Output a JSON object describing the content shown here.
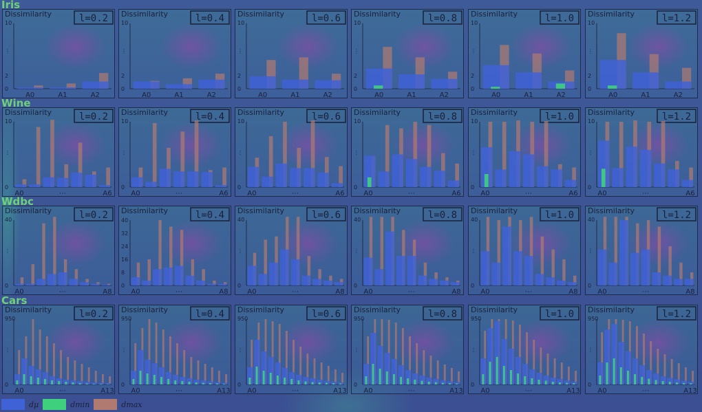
{
  "colors": {
    "mu": "#3f62d6",
    "min": "#3fd07e",
    "max": "#b07a70"
  },
  "legend": [
    {
      "key": "mu",
      "label": "dμ"
    },
    {
      "key": "min",
      "label": "dmin"
    },
    {
      "key": "max",
      "label": "dmax"
    }
  ],
  "chart_data": {
    "type": "bar",
    "panel_title": "Dissimilarity",
    "l_values": [
      "l=0.2",
      "l=0.4",
      "l=0.6",
      "l=0.8",
      "l=1.0",
      "l=1.2"
    ],
    "datasets": [
      {
        "name": "Iris",
        "yticks": [
          "10",
          "⋮",
          "2",
          "0"
        ],
        "ymax": 10,
        "xticks": [
          "A0",
          "A1",
          "A2"
        ],
        "panels": [
          {
            "mu": [
              0.2,
              0.2,
              1.1
            ],
            "min": [
              0,
              0,
              0
            ],
            "max": [
              0.5,
              0.8,
              2.4
            ]
          },
          {
            "mu": [
              1.1,
              0.7,
              1.4
            ],
            "min": [
              0,
              0,
              0
            ],
            "max": [
              1.2,
              1.6,
              2.3
            ]
          },
          {
            "mu": [
              1.9,
              1.4,
              1.3
            ],
            "min": [
              0,
              0,
              0
            ],
            "max": [
              4.4,
              4.8,
              2.3
            ]
          },
          {
            "mu": [
              3.1,
              2.2,
              1.5
            ],
            "min": [
              0.5,
              0,
              0
            ],
            "max": [
              6.4,
              4.8,
              2.6
            ]
          },
          {
            "mu": [
              3.6,
              2.5,
              1.1
            ],
            "min": [
              0.3,
              0,
              0.8
            ],
            "max": [
              6.7,
              5.4,
              2.8
            ]
          },
          {
            "mu": [
              4.4,
              2.5,
              1.1
            ],
            "min": [
              0.5,
              0,
              0
            ],
            "max": [
              8.5,
              5.3,
              3.2
            ]
          }
        ]
      },
      {
        "name": "Wine",
        "yticks": [
          "10",
          "⋮",
          "0"
        ],
        "ymax": 10,
        "xticks": [
          "A0",
          "⋯",
          "A6"
        ],
        "panels": [
          {
            "mu": [
              0.4,
              0.4,
              1.5,
              1.4,
              2.2,
              1.9,
              0.3
            ],
            "min": [
              0,
              0,
              0,
              0,
              0,
              0,
              0
            ],
            "max": [
              1.2,
              9.2,
              10.3,
              3.5,
              6.8,
              2.4,
              3.0
            ]
          },
          {
            "mu": [
              1.5,
              0.8,
              2.8,
              2.4,
              2.4,
              2.3,
              0.3
            ],
            "min": [
              0,
              0,
              0,
              0,
              0,
              0,
              0
            ],
            "max": [
              3.0,
              9.8,
              6.0,
              8.5,
              10.2,
              2.6,
              3.0
            ]
          },
          {
            "mu": [
              3.1,
              1.6,
              3.6,
              2.9,
              2.9,
              2.2,
              0.6
            ],
            "min": [
              0,
              0,
              0,
              0,
              0,
              0,
              0
            ],
            "max": [
              4.5,
              7.8,
              10.0,
              6.0,
              10.2,
              4.6,
              3.2
            ]
          },
          {
            "mu": [
              4.8,
              2.4,
              5.0,
              4.3,
              3.1,
              2.5,
              1.0
            ],
            "min": [
              1.5,
              0,
              0,
              0,
              0,
              0,
              0
            ],
            "max": [
              4.7,
              9.5,
              9.0,
              10.0,
              9.5,
              5.2,
              3.6
            ]
          },
          {
            "mu": [
              6.1,
              2.7,
              5.5,
              5.0,
              3.2,
              2.7,
              1.1
            ],
            "min": [
              2.0,
              0,
              0,
              0,
              0,
              0,
              0
            ],
            "max": [
              10.0,
              10.0,
              10.2,
              10.0,
              10.1,
              3.5,
              3.0
            ]
          },
          {
            "mu": [
              7.1,
              2.9,
              6.2,
              5.7,
              3.6,
              2.7,
              1.1
            ],
            "min": [
              2.8,
              0,
              0,
              0,
              0,
              0,
              0
            ],
            "max": [
              10.0,
              10.0,
              10.2,
              10.0,
              10.1,
              4.0,
              3.0
            ]
          }
        ]
      },
      {
        "name": "Wdbc",
        "yticks": [
          "40",
          "⋮",
          "0"
        ],
        "yticks_alt": [
          "40",
          "32",
          "24",
          "16",
          "8",
          "0"
        ],
        "ymax": 40,
        "xticks": [
          "A0",
          "⋯",
          "A8"
        ],
        "panels": [
          {
            "mu": [
              1,
              1,
              4,
              7,
              8,
              4,
              2,
              1,
              0.5
            ],
            "min": [
              0,
              0,
              0,
              0,
              0,
              0,
              0,
              0,
              0
            ],
            "max": [
              5,
              13,
              38,
              42,
              16,
              10,
              4,
              2,
              1
            ]
          },
          {
            "mu": [
              5,
              3,
              10,
              11,
              12,
              6,
              3,
              1,
              1
            ],
            "min": [
              0,
              0,
              0,
              0,
              0,
              0,
              0,
              0,
              0
            ],
            "max": [
              14,
              16,
              40,
              36,
              34,
              16,
              10,
              3,
              2
            ]
          },
          {
            "mu": [
              12,
              7,
              14,
              22,
              16,
              6,
              4,
              3,
              2
            ],
            "min": [
              0,
              0,
              0,
              0,
              0,
              0,
              0,
              0,
              0
            ],
            "max": [
              20,
              28,
              30,
              42,
              42,
              18,
              10,
              6,
              4
            ]
          },
          {
            "mu": [
              17,
              10,
              33,
              18,
              18,
              6,
              4,
              3,
              2
            ],
            "min": [
              0,
              0,
              0,
              0,
              0,
              0,
              0,
              0,
              0
            ],
            "max": [
              42,
              42,
              42,
              34,
              28,
              14,
              8,
              5,
              3
            ]
          },
          {
            "mu": [
              21,
              14,
              36,
              21,
              18,
              7,
              5,
              3,
              2
            ],
            "min": [
              0,
              0,
              0,
              0,
              0,
              0,
              0,
              0,
              0
            ],
            "max": [
              42,
              40,
              42,
              40,
              42,
              30,
              22,
              16,
              6
            ]
          },
          {
            "mu": [
              22,
              14,
              40,
              20,
              22,
              8,
              6,
              4,
              4
            ],
            "min": [
              0,
              0,
              0,
              0,
              0,
              0,
              0,
              0,
              0
            ],
            "max": [
              42,
              42,
              42,
              38,
              40,
              36,
              24,
              14,
              8
            ]
          }
        ]
      },
      {
        "name": "Cars",
        "yticks": [
          "950",
          "⋮",
          "0"
        ],
        "ymax": 950,
        "xticks": [
          "A0",
          "⋯",
          "A13"
        ],
        "panels": [
          {
            "mu": [
              150,
              380,
              270,
              220,
              180,
              120,
              90,
              70,
              60,
              50,
              40,
              30,
              25,
              20
            ],
            "min": [
              60,
              150,
              120,
              100,
              80,
              60,
              50,
              40,
              30,
              20,
              15,
              10,
              10,
              5
            ],
            "max": [
              500,
              700,
              950,
              800,
              700,
              600,
              500,
              400,
              350,
              300,
              250,
              200,
              150,
              120
            ]
          },
          {
            "mu": [
              200,
              500,
              360,
              310,
              250,
              180,
              140,
              110,
              90,
              70,
              60,
              45,
              35,
              25
            ],
            "min": [
              80,
              200,
              160,
              140,
              110,
              80,
              60,
              50,
              40,
              30,
              25,
              20,
              15,
              10
            ],
            "max": [
              600,
              820,
              950,
              900,
              800,
              700,
              600,
              500,
              400,
              350,
              300,
              250,
              200,
              150
            ]
          },
          {
            "mu": [
              250,
              650,
              480,
              400,
              320,
              240,
              180,
              140,
              110,
              90,
              70,
              55,
              40,
              30
            ],
            "min": [
              100,
              260,
              200,
              170,
              130,
              100,
              80,
              60,
              45,
              35,
              30,
              25,
              20,
              15
            ],
            "max": [
              650,
              900,
              950,
              920,
              880,
              780,
              650,
              550,
              450,
              380,
              320,
              270,
              220,
              170
            ]
          },
          {
            "mu": [
              300,
              750,
              560,
              460,
              370,
              280,
              210,
              160,
              130,
              100,
              80,
              60,
              45,
              35
            ],
            "min": [
              120,
              300,
              230,
              190,
              150,
              110,
              90,
              70,
              55,
              40,
              35,
              25,
              20,
              15
            ],
            "max": [
              700,
              950,
              950,
              940,
              900,
              820,
              700,
              600,
              500,
              420,
              350,
              290,
              240,
              190
            ]
          },
          {
            "mu": [
              380,
              820,
              920,
              660,
              520,
              400,
              300,
              220,
              170,
              130,
              100,
              80,
              60,
              40
            ],
            "min": [
              150,
              330,
              400,
              270,
              210,
              160,
              120,
              90,
              70,
              55,
              40,
              30,
              25,
              20
            ],
            "max": [
              780,
              950,
              950,
              950,
              930,
              870,
              760,
              650,
              540,
              450,
              380,
              320,
              260,
              200
            ]
          },
          {
            "mu": [
              320,
              800,
              880,
              620,
              480,
              380,
              280,
              210,
              160,
              120,
              95,
              75,
              55,
              40
            ],
            "min": [
              130,
              320,
              380,
              250,
              200,
              150,
              110,
              85,
              65,
              50,
              40,
              30,
              22,
              18
            ],
            "max": [
              760,
              950,
              950,
              940,
              920,
              850,
              740,
              630,
              520,
              440,
              370,
              310,
              250,
              200
            ]
          }
        ]
      }
    ]
  }
}
